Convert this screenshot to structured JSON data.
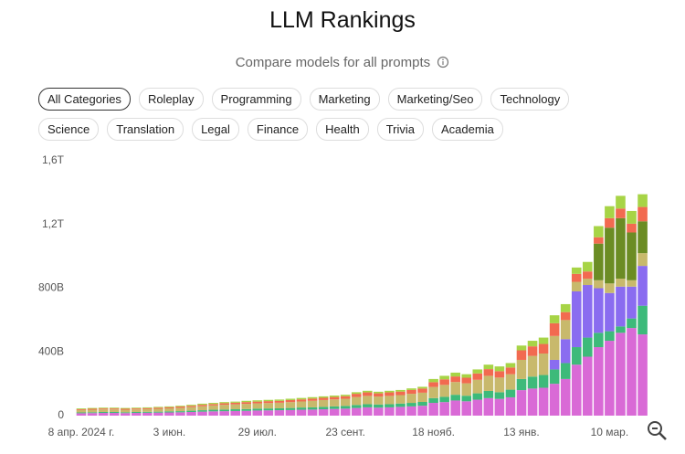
{
  "header": {
    "title": "LLM Rankings",
    "subtitle": "Compare models for all prompts"
  },
  "filters": [
    "All Categories",
    "Roleplay",
    "Programming",
    "Marketing",
    "Marketing/Seo",
    "Technology",
    "Science",
    "Translation",
    "Legal",
    "Finance",
    "Health",
    "Trivia",
    "Academia"
  ],
  "chart_data": {
    "type": "stacked-bar",
    "categories": [
      "8 апр. 2024 г.",
      null,
      null,
      null,
      null,
      null,
      null,
      null,
      "3 июн.",
      null,
      null,
      null,
      null,
      null,
      null,
      null,
      "29 июл.",
      null,
      null,
      null,
      null,
      null,
      null,
      null,
      "23 сент.",
      null,
      null,
      null,
      null,
      null,
      null,
      null,
      "18 нояб.",
      null,
      null,
      null,
      null,
      null,
      null,
      null,
      "13 янв.",
      null,
      null,
      null,
      null,
      null,
      null,
      null,
      "10 мар.",
      null,
      null,
      null
    ],
    "series": [
      {
        "color": "#d96ad6",
        "values": [
          15,
          16,
          17,
          17,
          16,
          17,
          18,
          19,
          20,
          21,
          23,
          25,
          27,
          28,
          29,
          30,
          32,
          33,
          34,
          35,
          37,
          38,
          40,
          42,
          44,
          48,
          52,
          50,
          52,
          55,
          58,
          62,
          80,
          85,
          95,
          90,
          100,
          110,
          105,
          115,
          160,
          170,
          175,
          200,
          230,
          320,
          370,
          430,
          470,
          520,
          550,
          510
        ]
      },
      {
        "color": "#3dba7a",
        "values": [
          5,
          5,
          6,
          6,
          5,
          6,
          6,
          6,
          7,
          7,
          8,
          9,
          10,
          10,
          11,
          11,
          12,
          12,
          12,
          13,
          14,
          14,
          15,
          16,
          17,
          19,
          20,
          20,
          20,
          21,
          22,
          24,
          30,
          33,
          36,
          35,
          40,
          45,
          42,
          48,
          70,
          75,
          80,
          90,
          100,
          110,
          120,
          90,
          60,
          40,
          60,
          180
        ]
      },
      {
        "color": "#8a6cf0",
        "values": [
          0,
          0,
          0,
          0,
          0,
          0,
          0,
          0,
          0,
          0,
          0,
          0,
          0,
          0,
          0,
          0,
          0,
          0,
          0,
          0,
          0,
          0,
          0,
          0,
          0,
          0,
          0,
          0,
          0,
          0,
          0,
          0,
          0,
          0,
          0,
          0,
          0,
          0,
          0,
          0,
          0,
          0,
          0,
          60,
          150,
          350,
          330,
          280,
          240,
          250,
          200,
          250
        ]
      },
      {
        "color": "#c8b96c",
        "values": [
          15,
          16,
          16,
          16,
          16,
          16,
          17,
          18,
          19,
          21,
          23,
          25,
          27,
          30,
          31,
          33,
          33,
          34,
          35,
          37,
          38,
          41,
          43,
          44,
          45,
          50,
          52,
          50,
          52,
          53,
          57,
          58,
          70,
          75,
          80,
          78,
          85,
          95,
          92,
          97,
          120,
          130,
          135,
          150,
          120,
          60,
          40,
          50,
          60,
          50,
          40,
          80
        ]
      },
      {
        "color": "#6b8c24",
        "values": [
          0,
          0,
          0,
          0,
          0,
          0,
          0,
          0,
          0,
          0,
          0,
          0,
          0,
          0,
          0,
          0,
          0,
          0,
          0,
          0,
          0,
          0,
          0,
          0,
          0,
          0,
          0,
          0,
          0,
          0,
          0,
          0,
          0,
          0,
          0,
          0,
          0,
          0,
          0,
          0,
          0,
          0,
          0,
          0,
          0,
          0,
          0,
          230,
          350,
          380,
          300,
          200
        ]
      },
      {
        "color": "#f26a50",
        "values": [
          5,
          6,
          6,
          6,
          6,
          6,
          6,
          7,
          7,
          8,
          8,
          9,
          9,
          10,
          10,
          11,
          11,
          12,
          12,
          13,
          13,
          14,
          14,
          15,
          16,
          20,
          22,
          20,
          22,
          22,
          24,
          26,
          30,
          35,
          35,
          35,
          40,
          42,
          40,
          42,
          60,
          60,
          60,
          80,
          50,
          50,
          45,
          40,
          60,
          60,
          55,
          90
        ]
      },
      {
        "color": "#a7d446",
        "values": [
          5,
          5,
          5,
          5,
          5,
          5,
          5,
          5,
          5,
          5,
          6,
          7,
          7,
          7,
          7,
          8,
          8,
          8,
          8,
          8,
          9,
          9,
          9,
          9,
          9,
          10,
          10,
          10,
          10,
          10,
          10,
          11,
          20,
          22,
          24,
          22,
          25,
          28,
          30,
          28,
          30,
          35,
          40,
          50,
          50,
          40,
          60,
          70,
          75,
          80,
          80,
          80
        ]
      }
    ],
    "ylim": [
      0,
      1650
    ],
    "yticks": [
      0,
      {
        "value": 400,
        "label": "400B"
      },
      {
        "value": 800,
        "label": "800B"
      },
      {
        "value": 1200,
        "label": "1,2T"
      },
      {
        "value": 1600,
        "label": "1,6T"
      }
    ],
    "grid": false
  }
}
